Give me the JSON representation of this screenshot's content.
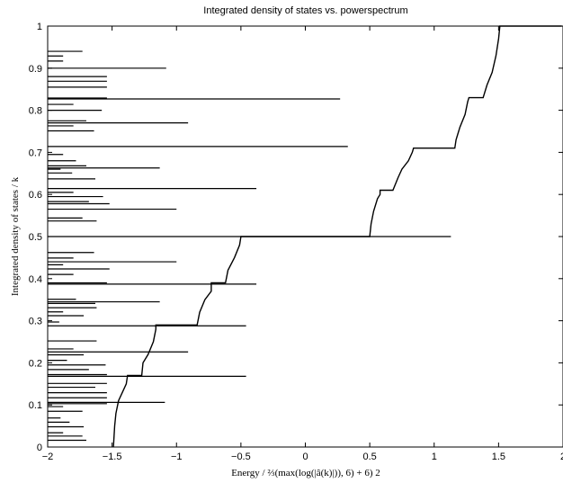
{
  "chart_data": {
    "type": "line",
    "title": "Integrated density of states vs. powerspectrum",
    "xlabel": "Energy / ⅔(max(log(|â(k)|)), 6) + 6) 2",
    "ylabel": "Integrated density of states / k",
    "xlim": [
      -2,
      2
    ],
    "ylim": [
      0,
      1
    ],
    "grid": false,
    "x_ticks": [
      "−2",
      "−1.5",
      "−1",
      "−0.5",
      "0",
      "0.5",
      "1",
      "1.5",
      "2"
    ],
    "y_ticks": [
      "0",
      "0.1",
      "0.2",
      "0.3",
      "0.4",
      "0.5",
      "0.6",
      "0.7",
      "0.8",
      "0.9",
      "1"
    ],
    "series": [
      {
        "kind": "staircase",
        "points": [
          [
            -1.49,
            0.0
          ],
          [
            -1.48,
            0.05
          ],
          [
            -1.47,
            0.08
          ],
          [
            -1.45,
            0.11
          ],
          [
            -1.42,
            0.13
          ],
          [
            -1.39,
            0.15
          ],
          [
            -1.38,
            0.17
          ],
          [
            -1.27,
            0.17
          ],
          [
            -1.26,
            0.2
          ],
          [
            -1.22,
            0.22
          ],
          [
            -1.18,
            0.25
          ],
          [
            -1.16,
            0.28
          ],
          [
            -1.16,
            0.29
          ],
          [
            -0.84,
            0.29
          ],
          [
            -0.82,
            0.32
          ],
          [
            -0.78,
            0.35
          ],
          [
            -0.73,
            0.37
          ],
          [
            -0.73,
            0.39
          ],
          [
            -0.62,
            0.39
          ],
          [
            -0.6,
            0.42
          ],
          [
            -0.55,
            0.45
          ],
          [
            -0.51,
            0.48
          ],
          [
            -0.5,
            0.5
          ],
          [
            0.5,
            0.5
          ],
          [
            0.51,
            0.53
          ],
          [
            0.53,
            0.56
          ],
          [
            0.56,
            0.59
          ],
          [
            0.58,
            0.6
          ],
          [
            0.58,
            0.61
          ],
          [
            0.68,
            0.61
          ],
          [
            0.72,
            0.64
          ],
          [
            0.75,
            0.66
          ],
          [
            0.8,
            0.68
          ],
          [
            0.83,
            0.7
          ],
          [
            0.84,
            0.71
          ],
          [
            1.16,
            0.71
          ],
          [
            1.17,
            0.73
          ],
          [
            1.2,
            0.76
          ],
          [
            1.24,
            0.79
          ],
          [
            1.26,
            0.82
          ],
          [
            1.27,
            0.83
          ],
          [
            1.38,
            0.83
          ],
          [
            1.41,
            0.86
          ],
          [
            1.45,
            0.89
          ],
          [
            1.48,
            0.93
          ],
          [
            1.5,
            0.97
          ],
          [
            1.51,
            1.0
          ],
          [
            1.99,
            1.0
          ]
        ]
      },
      {
        "kind": "horizontal-spectrum",
        "segments": [
          [
            0.016,
            -1.7
          ],
          [
            0.026,
            -1.73
          ],
          [
            0.034,
            -1.88
          ],
          [
            0.048,
            -1.72
          ],
          [
            0.059,
            -1.83
          ],
          [
            0.069,
            -1.9
          ],
          [
            0.085,
            -1.73
          ],
          [
            0.096,
            -1.88
          ],
          [
            0.103,
            -1.54
          ],
          [
            0.106,
            -1.09
          ],
          [
            0.117,
            -1.54
          ],
          [
            0.129,
            -1.54
          ],
          [
            0.142,
            -1.63
          ],
          [
            0.151,
            -1.54
          ],
          [
            0.168,
            -0.46
          ],
          [
            0.172,
            -1.54
          ],
          [
            0.184,
            -1.68
          ],
          [
            0.195,
            -1.55
          ],
          [
            0.206,
            -1.85
          ],
          [
            0.219,
            -1.72
          ],
          [
            0.226,
            -0.91
          ],
          [
            0.233,
            -1.8
          ],
          [
            0.252,
            -1.62
          ],
          [
            0.288,
            -0.46
          ],
          [
            0.297,
            -1.91
          ],
          [
            0.312,
            -1.72
          ],
          [
            0.321,
            -1.88
          ],
          [
            0.331,
            -1.62
          ],
          [
            0.341,
            -1.63
          ],
          [
            0.345,
            -1.13
          ],
          [
            0.351,
            -1.78
          ],
          [
            0.387,
            -0.38
          ],
          [
            0.39,
            -1.54
          ],
          [
            0.41,
            -1.8
          ],
          [
            0.423,
            -1.52
          ],
          [
            0.433,
            -1.88
          ],
          [
            0.44,
            -1
          ],
          [
            0.449,
            -1.8
          ],
          [
            0.462,
            -1.64
          ],
          [
            0.5,
            1.13
          ],
          [
            0.537,
            -1.62
          ],
          [
            0.544,
            -1.73
          ],
          [
            0.565,
            -1
          ],
          [
            0.578,
            -1.52
          ],
          [
            0.583,
            -1.68
          ],
          [
            0.595,
            -1.57
          ],
          [
            0.605,
            -1.8
          ],
          [
            0.614,
            -0.38
          ],
          [
            0.637,
            -1.63
          ],
          [
            0.651,
            -1.81
          ],
          [
            0.66,
            -1.9
          ],
          [
            0.663,
            -1.13
          ],
          [
            0.668,
            -1.7
          ],
          [
            0.68,
            -1.78
          ],
          [
            0.695,
            -1.88
          ],
          [
            0.714,
            0.33
          ],
          [
            0.751,
            -1.64
          ],
          [
            0.763,
            -1.8
          ],
          [
            0.77,
            -0.91
          ],
          [
            0.775,
            -1.7
          ],
          [
            0.8,
            -1.58
          ],
          [
            0.814,
            -1.8
          ],
          [
            0.827,
            0.27
          ],
          [
            0.829,
            -1.54
          ],
          [
            0.855,
            -1.54
          ],
          [
            0.869,
            -1.54
          ],
          [
            0.88,
            -1.54
          ],
          [
            0.9,
            -1.08
          ],
          [
            0.917,
            -1.88
          ],
          [
            0.929,
            -1.88
          ],
          [
            0.94,
            -1.73
          ]
        ]
      }
    ]
  }
}
